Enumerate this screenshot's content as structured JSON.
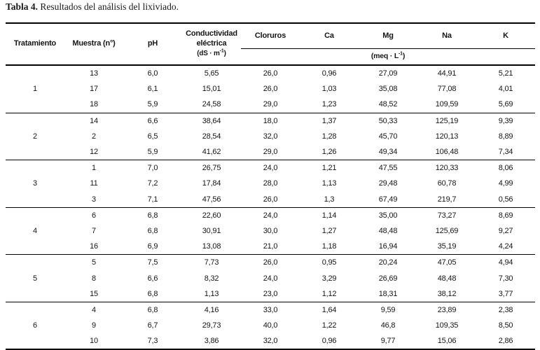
{
  "title": {
    "prefix": "Tabla 4.",
    "text": "Resultados del análisis del lixiviado."
  },
  "table": {
    "headers": {
      "tratamiento": "Tratamiento",
      "muestra": "Muestra (n°)",
      "ph": "pH",
      "conductividad_line1": "Conductividad",
      "conductividad_line2": "eléctrica",
      "conductividad_unit_base": "(dS · m",
      "conductividad_unit_sup": "-1",
      "conductividad_unit_close": ")",
      "cloruros": "Cloruros",
      "ca": "Ca",
      "mg": "Mg",
      "na": "Na",
      "k": "K",
      "meq_base": "(meq · L",
      "meq_sup": "-1",
      "meq_close": ")"
    },
    "groups": [
      {
        "tratamiento": "1",
        "rows": [
          {
            "muestra": "13",
            "ph": "6,0",
            "ce": "5,65",
            "cloruros": "26,0",
            "ca": "0,96",
            "mg": "27,09",
            "na": "44,91",
            "k": "5,21"
          },
          {
            "muestra": "17",
            "ph": "6,1",
            "ce": "15,01",
            "cloruros": "26,0",
            "ca": "1,03",
            "mg": "35,08",
            "na": "77,08",
            "k": "4,01"
          },
          {
            "muestra": "18",
            "ph": "5,9",
            "ce": "24,58",
            "cloruros": "29,0",
            "ca": "1,23",
            "mg": "48,52",
            "na": "109,59",
            "k": "5,69"
          }
        ]
      },
      {
        "tratamiento": "2",
        "rows": [
          {
            "muestra": "14",
            "ph": "6,6",
            "ce": "38,64",
            "cloruros": "18,0",
            "ca": "1,37",
            "mg": "50,33",
            "na": "125,19",
            "k": "9,39"
          },
          {
            "muestra": "2",
            "ph": "6,5",
            "ce": "28,54",
            "cloruros": "32,0",
            "ca": "1,28",
            "mg": "45,70",
            "na": "120,13",
            "k": "8,89"
          },
          {
            "muestra": "12",
            "ph": "5,9",
            "ce": "41,62",
            "cloruros": "29,0",
            "ca": "1,26",
            "mg": "49,34",
            "na": "106,48",
            "k": "7,34"
          }
        ]
      },
      {
        "tratamiento": "3",
        "rows": [
          {
            "muestra": "1",
            "ph": "7,0",
            "ce": "26,75",
            "cloruros": "24,0",
            "ca": "1,21",
            "mg": "47,55",
            "na": "120,33",
            "k": "8,06"
          },
          {
            "muestra": "11",
            "ph": "7,2",
            "ce": "17,84",
            "cloruros": "28,0",
            "ca": "1,13",
            "mg": "29,48",
            "na": "60,78",
            "k": "4,99"
          },
          {
            "muestra": "3",
            "ph": "7,1",
            "ce": "47,56",
            "cloruros": "26,0",
            "ca": "1,3",
            "mg": "67,49",
            "na": "219,7",
            "k": "0,56"
          }
        ]
      },
      {
        "tratamiento": "4",
        "rows": [
          {
            "muestra": "6",
            "ph": "6,8",
            "ce": "22,60",
            "cloruros": "24,0",
            "ca": "1,14",
            "mg": "35,00",
            "na": "73,27",
            "k": "8,69"
          },
          {
            "muestra": "7",
            "ph": "6,8",
            "ce": "30,91",
            "cloruros": "30,0",
            "ca": "1,27",
            "mg": "48,48",
            "na": "125,69",
            "k": "9,27"
          },
          {
            "muestra": "16",
            "ph": "6,9",
            "ce": "13,08",
            "cloruros": "21,0",
            "ca": "1,18",
            "mg": "16,94",
            "na": "35,19",
            "k": "4,24"
          }
        ]
      },
      {
        "tratamiento": "5",
        "rows": [
          {
            "muestra": "5",
            "ph": "7,5",
            "ce": "7,73",
            "cloruros": "26,0",
            "ca": "0,95",
            "mg": "20,24",
            "na": "47,05",
            "k": "4,94"
          },
          {
            "muestra": "8",
            "ph": "6,6",
            "ce": "8,32",
            "cloruros": "24,0",
            "ca": "3,29",
            "mg": "26,69",
            "na": "48,48",
            "k": "7,30"
          },
          {
            "muestra": "15",
            "ph": "6,8",
            "ce": "1,13",
            "cloruros": "23,0",
            "ca": "1,12",
            "mg": "18,31",
            "na": "38,12",
            "k": "3,77"
          }
        ]
      },
      {
        "tratamiento": "6",
        "rows": [
          {
            "muestra": "4",
            "ph": "6,8",
            "ce": "4,16",
            "cloruros": "33,0",
            "ca": "1,64",
            "mg": "9,59",
            "na": "23,89",
            "k": "2,38"
          },
          {
            "muestra": "9",
            "ph": "6,7",
            "ce": "29,73",
            "cloruros": "40,0",
            "ca": "1,22",
            "mg": "46,8",
            "na": "109,35",
            "k": "8,50"
          },
          {
            "muestra": "10",
            "ph": "7,3",
            "ce": "3,86",
            "cloruros": "32,0",
            "ca": "0,96",
            "mg": "9,77",
            "na": "15,06",
            "k": "2,86"
          }
        ]
      }
    ]
  }
}
